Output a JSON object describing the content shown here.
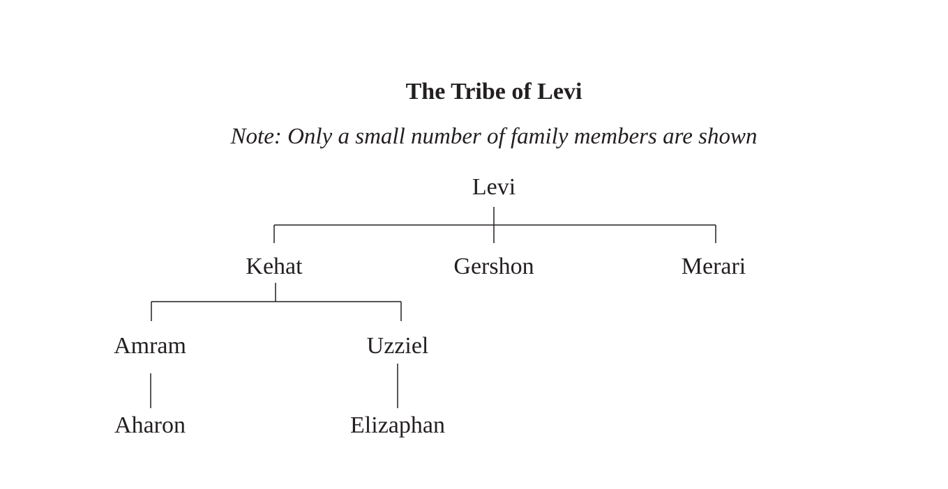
{
  "title": "The Tribe of Levi",
  "note": "Note: Only a small number of family members are shown",
  "nodes": {
    "levi": "Levi",
    "kehat": "Kehat",
    "gershon": "Gershon",
    "merari": "Merari",
    "amram": "Amram",
    "uzziel": "Uzziel",
    "aharon": "Aharon",
    "elizaphan": "Elizaphan"
  }
}
